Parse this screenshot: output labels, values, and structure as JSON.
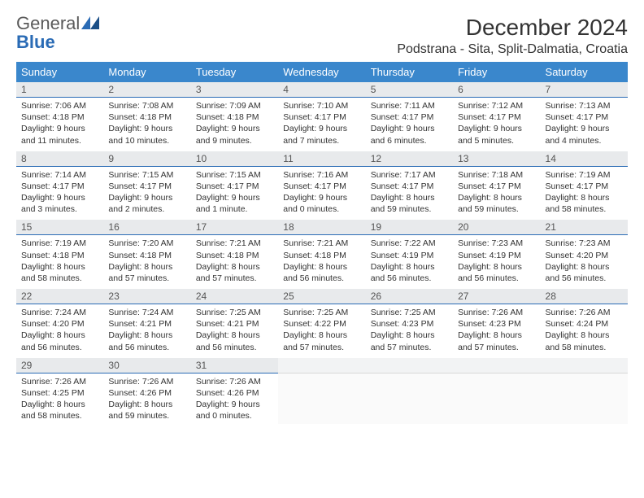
{
  "logo": {
    "text1": "General",
    "text2": "Blue"
  },
  "title": "December 2024",
  "location": "Podstrana - Sita, Split-Dalmatia, Croatia",
  "colors": {
    "header_bg": "#3a87cc",
    "header_fg": "#ffffff",
    "daynum_bg": "#e8eaec",
    "daynum_border": "#2a6bb5",
    "logo_blue": "#2a6bb5",
    "text": "#333333"
  },
  "day_headers": [
    "Sunday",
    "Monday",
    "Tuesday",
    "Wednesday",
    "Thursday",
    "Friday",
    "Saturday"
  ],
  "weeks": [
    [
      {
        "num": "1",
        "sunrise": "Sunrise: 7:06 AM",
        "sunset": "Sunset: 4:18 PM",
        "day1": "Daylight: 9 hours",
        "day2": "and 11 minutes."
      },
      {
        "num": "2",
        "sunrise": "Sunrise: 7:08 AM",
        "sunset": "Sunset: 4:18 PM",
        "day1": "Daylight: 9 hours",
        "day2": "and 10 minutes."
      },
      {
        "num": "3",
        "sunrise": "Sunrise: 7:09 AM",
        "sunset": "Sunset: 4:18 PM",
        "day1": "Daylight: 9 hours",
        "day2": "and 9 minutes."
      },
      {
        "num": "4",
        "sunrise": "Sunrise: 7:10 AM",
        "sunset": "Sunset: 4:17 PM",
        "day1": "Daylight: 9 hours",
        "day2": "and 7 minutes."
      },
      {
        "num": "5",
        "sunrise": "Sunrise: 7:11 AM",
        "sunset": "Sunset: 4:17 PM",
        "day1": "Daylight: 9 hours",
        "day2": "and 6 minutes."
      },
      {
        "num": "6",
        "sunrise": "Sunrise: 7:12 AM",
        "sunset": "Sunset: 4:17 PM",
        "day1": "Daylight: 9 hours",
        "day2": "and 5 minutes."
      },
      {
        "num": "7",
        "sunrise": "Sunrise: 7:13 AM",
        "sunset": "Sunset: 4:17 PM",
        "day1": "Daylight: 9 hours",
        "day2": "and 4 minutes."
      }
    ],
    [
      {
        "num": "8",
        "sunrise": "Sunrise: 7:14 AM",
        "sunset": "Sunset: 4:17 PM",
        "day1": "Daylight: 9 hours",
        "day2": "and 3 minutes."
      },
      {
        "num": "9",
        "sunrise": "Sunrise: 7:15 AM",
        "sunset": "Sunset: 4:17 PM",
        "day1": "Daylight: 9 hours",
        "day2": "and 2 minutes."
      },
      {
        "num": "10",
        "sunrise": "Sunrise: 7:15 AM",
        "sunset": "Sunset: 4:17 PM",
        "day1": "Daylight: 9 hours",
        "day2": "and 1 minute."
      },
      {
        "num": "11",
        "sunrise": "Sunrise: 7:16 AM",
        "sunset": "Sunset: 4:17 PM",
        "day1": "Daylight: 9 hours",
        "day2": "and 0 minutes."
      },
      {
        "num": "12",
        "sunrise": "Sunrise: 7:17 AM",
        "sunset": "Sunset: 4:17 PM",
        "day1": "Daylight: 8 hours",
        "day2": "and 59 minutes."
      },
      {
        "num": "13",
        "sunrise": "Sunrise: 7:18 AM",
        "sunset": "Sunset: 4:17 PM",
        "day1": "Daylight: 8 hours",
        "day2": "and 59 minutes."
      },
      {
        "num": "14",
        "sunrise": "Sunrise: 7:19 AM",
        "sunset": "Sunset: 4:17 PM",
        "day1": "Daylight: 8 hours",
        "day2": "and 58 minutes."
      }
    ],
    [
      {
        "num": "15",
        "sunrise": "Sunrise: 7:19 AM",
        "sunset": "Sunset: 4:18 PM",
        "day1": "Daylight: 8 hours",
        "day2": "and 58 minutes."
      },
      {
        "num": "16",
        "sunrise": "Sunrise: 7:20 AM",
        "sunset": "Sunset: 4:18 PM",
        "day1": "Daylight: 8 hours",
        "day2": "and 57 minutes."
      },
      {
        "num": "17",
        "sunrise": "Sunrise: 7:21 AM",
        "sunset": "Sunset: 4:18 PM",
        "day1": "Daylight: 8 hours",
        "day2": "and 57 minutes."
      },
      {
        "num": "18",
        "sunrise": "Sunrise: 7:21 AM",
        "sunset": "Sunset: 4:18 PM",
        "day1": "Daylight: 8 hours",
        "day2": "and 56 minutes."
      },
      {
        "num": "19",
        "sunrise": "Sunrise: 7:22 AM",
        "sunset": "Sunset: 4:19 PM",
        "day1": "Daylight: 8 hours",
        "day2": "and 56 minutes."
      },
      {
        "num": "20",
        "sunrise": "Sunrise: 7:23 AM",
        "sunset": "Sunset: 4:19 PM",
        "day1": "Daylight: 8 hours",
        "day2": "and 56 minutes."
      },
      {
        "num": "21",
        "sunrise": "Sunrise: 7:23 AM",
        "sunset": "Sunset: 4:20 PM",
        "day1": "Daylight: 8 hours",
        "day2": "and 56 minutes."
      }
    ],
    [
      {
        "num": "22",
        "sunrise": "Sunrise: 7:24 AM",
        "sunset": "Sunset: 4:20 PM",
        "day1": "Daylight: 8 hours",
        "day2": "and 56 minutes."
      },
      {
        "num": "23",
        "sunrise": "Sunrise: 7:24 AM",
        "sunset": "Sunset: 4:21 PM",
        "day1": "Daylight: 8 hours",
        "day2": "and 56 minutes."
      },
      {
        "num": "24",
        "sunrise": "Sunrise: 7:25 AM",
        "sunset": "Sunset: 4:21 PM",
        "day1": "Daylight: 8 hours",
        "day2": "and 56 minutes."
      },
      {
        "num": "25",
        "sunrise": "Sunrise: 7:25 AM",
        "sunset": "Sunset: 4:22 PM",
        "day1": "Daylight: 8 hours",
        "day2": "and 57 minutes."
      },
      {
        "num": "26",
        "sunrise": "Sunrise: 7:25 AM",
        "sunset": "Sunset: 4:23 PM",
        "day1": "Daylight: 8 hours",
        "day2": "and 57 minutes."
      },
      {
        "num": "27",
        "sunrise": "Sunrise: 7:26 AM",
        "sunset": "Sunset: 4:23 PM",
        "day1": "Daylight: 8 hours",
        "day2": "and 57 minutes."
      },
      {
        "num": "28",
        "sunrise": "Sunrise: 7:26 AM",
        "sunset": "Sunset: 4:24 PM",
        "day1": "Daylight: 8 hours",
        "day2": "and 58 minutes."
      }
    ],
    [
      {
        "num": "29",
        "sunrise": "Sunrise: 7:26 AM",
        "sunset": "Sunset: 4:25 PM",
        "day1": "Daylight: 8 hours",
        "day2": "and 58 minutes."
      },
      {
        "num": "30",
        "sunrise": "Sunrise: 7:26 AM",
        "sunset": "Sunset: 4:26 PM",
        "day1": "Daylight: 8 hours",
        "day2": "and 59 minutes."
      },
      {
        "num": "31",
        "sunrise": "Sunrise: 7:26 AM",
        "sunset": "Sunset: 4:26 PM",
        "day1": "Daylight: 9 hours",
        "day2": "and 0 minutes."
      },
      null,
      null,
      null,
      null
    ]
  ]
}
